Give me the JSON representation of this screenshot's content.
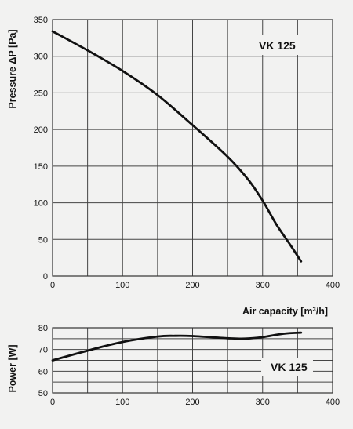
{
  "chart_data": [
    {
      "type": "line",
      "id": "pressure",
      "title": "VK 125",
      "xlabel": "Air capacity [m³/h]",
      "ylabel": "Pressure ΔP [Pa]",
      "xlim": [
        0,
        400
      ],
      "ylim": [
        0,
        350
      ],
      "xticks": [
        0,
        100,
        200,
        300,
        400
      ],
      "yticks": [
        0,
        50,
        100,
        150,
        200,
        250,
        300,
        350
      ],
      "grid": true,
      "series": [
        {
          "x": [
            0,
            50,
            100,
            150,
            200,
            250,
            280,
            300,
            320,
            340,
            355
          ],
          "y": [
            334,
            308,
            280,
            247,
            206,
            163,
            131,
            103,
            70,
            42,
            20
          ]
        }
      ]
    },
    {
      "type": "line",
      "id": "power",
      "title": "VK 125",
      "xlabel": "",
      "ylabel": "Power [W]",
      "xlim": [
        0,
        400
      ],
      "ylim": [
        50,
        80
      ],
      "xticks": [
        0,
        100,
        200,
        300,
        400
      ],
      "yticks": [
        50,
        60,
        70,
        80
      ],
      "grid": true,
      "series": [
        {
          "x": [
            0,
            50,
            100,
            150,
            175,
            200,
            250,
            275,
            300,
            330,
            355
          ],
          "y": [
            65,
            69.5,
            73.5,
            76,
            76.3,
            76.2,
            75.2,
            75,
            75.7,
            77.3,
            77.8
          ]
        }
      ]
    }
  ]
}
